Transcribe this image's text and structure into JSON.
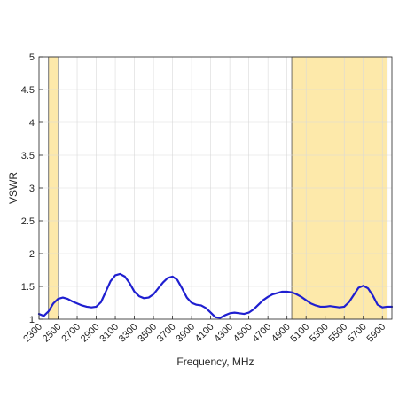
{
  "chart_data": {
    "type": "line",
    "title": "",
    "xlabel": "Frequency, MHz",
    "ylabel": "VSWR",
    "xlim": [
      2300,
      6000
    ],
    "ylim": [
      1,
      5
    ],
    "grid": true,
    "x_ticks": [
      2300,
      2500,
      2700,
      2900,
      3100,
      3300,
      3500,
      3700,
      3900,
      4100,
      4300,
      4500,
      4700,
      4900,
      5100,
      5300,
      5500,
      5700,
      5900
    ],
    "x_tick_labels": [
      "2300",
      "2500",
      "2700",
      "2900",
      "3100",
      "3300",
      "3500",
      "3700",
      "3900",
      "4100",
      "4300",
      "4500",
      "4700",
      "4900",
      "5100",
      "5300",
      "5500",
      "5700",
      "5900"
    ],
    "y_ticks": [
      1,
      1.5,
      2,
      2.5,
      3,
      3.5,
      4,
      4.5,
      5
    ],
    "y_tick_labels": [
      "1",
      "1.5",
      "2",
      "2.5",
      "3",
      "3.5",
      "4",
      "4.5",
      "5"
    ],
    "highlight_bands": [
      {
        "x0": 2400,
        "x1": 2500,
        "color": "#fde9aa"
      },
      {
        "x0": 4950,
        "x1": 5950,
        "color": "#fde9aa"
      }
    ],
    "series": [
      {
        "color": "#1f1fd0",
        "x": [
          2300,
          2350,
          2400,
          2450,
          2500,
          2550,
          2600,
          2650,
          2700,
          2750,
          2800,
          2850,
          2900,
          2950,
          3000,
          3050,
          3100,
          3150,
          3200,
          3250,
          3300,
          3350,
          3400,
          3450,
          3500,
          3550,
          3600,
          3650,
          3700,
          3750,
          3800,
          3850,
          3900,
          3950,
          4000,
          4050,
          4100,
          4150,
          4200,
          4250,
          4300,
          4350,
          4400,
          4450,
          4500,
          4550,
          4600,
          4650,
          4700,
          4750,
          4800,
          4850,
          4900,
          4950,
          5000,
          5050,
          5100,
          5150,
          5200,
          5250,
          5300,
          5350,
          5400,
          5450,
          5500,
          5550,
          5600,
          5650,
          5700,
          5750,
          5800,
          5850,
          5900,
          5950,
          6000
        ],
        "y": [
          1.08,
          1.05,
          1.12,
          1.24,
          1.31,
          1.33,
          1.31,
          1.27,
          1.24,
          1.21,
          1.19,
          1.18,
          1.19,
          1.26,
          1.42,
          1.58,
          1.67,
          1.69,
          1.65,
          1.55,
          1.42,
          1.35,
          1.32,
          1.33,
          1.38,
          1.47,
          1.56,
          1.63,
          1.65,
          1.6,
          1.47,
          1.33,
          1.25,
          1.22,
          1.21,
          1.17,
          1.1,
          1.03,
          1.02,
          1.06,
          1.09,
          1.1,
          1.09,
          1.08,
          1.1,
          1.15,
          1.22,
          1.29,
          1.34,
          1.38,
          1.4,
          1.42,
          1.42,
          1.41,
          1.38,
          1.34,
          1.29,
          1.24,
          1.21,
          1.19,
          1.19,
          1.2,
          1.19,
          1.18,
          1.19,
          1.26,
          1.37,
          1.48,
          1.51,
          1.47,
          1.36,
          1.22,
          1.18,
          1.19,
          1.19
        ]
      }
    ]
  }
}
